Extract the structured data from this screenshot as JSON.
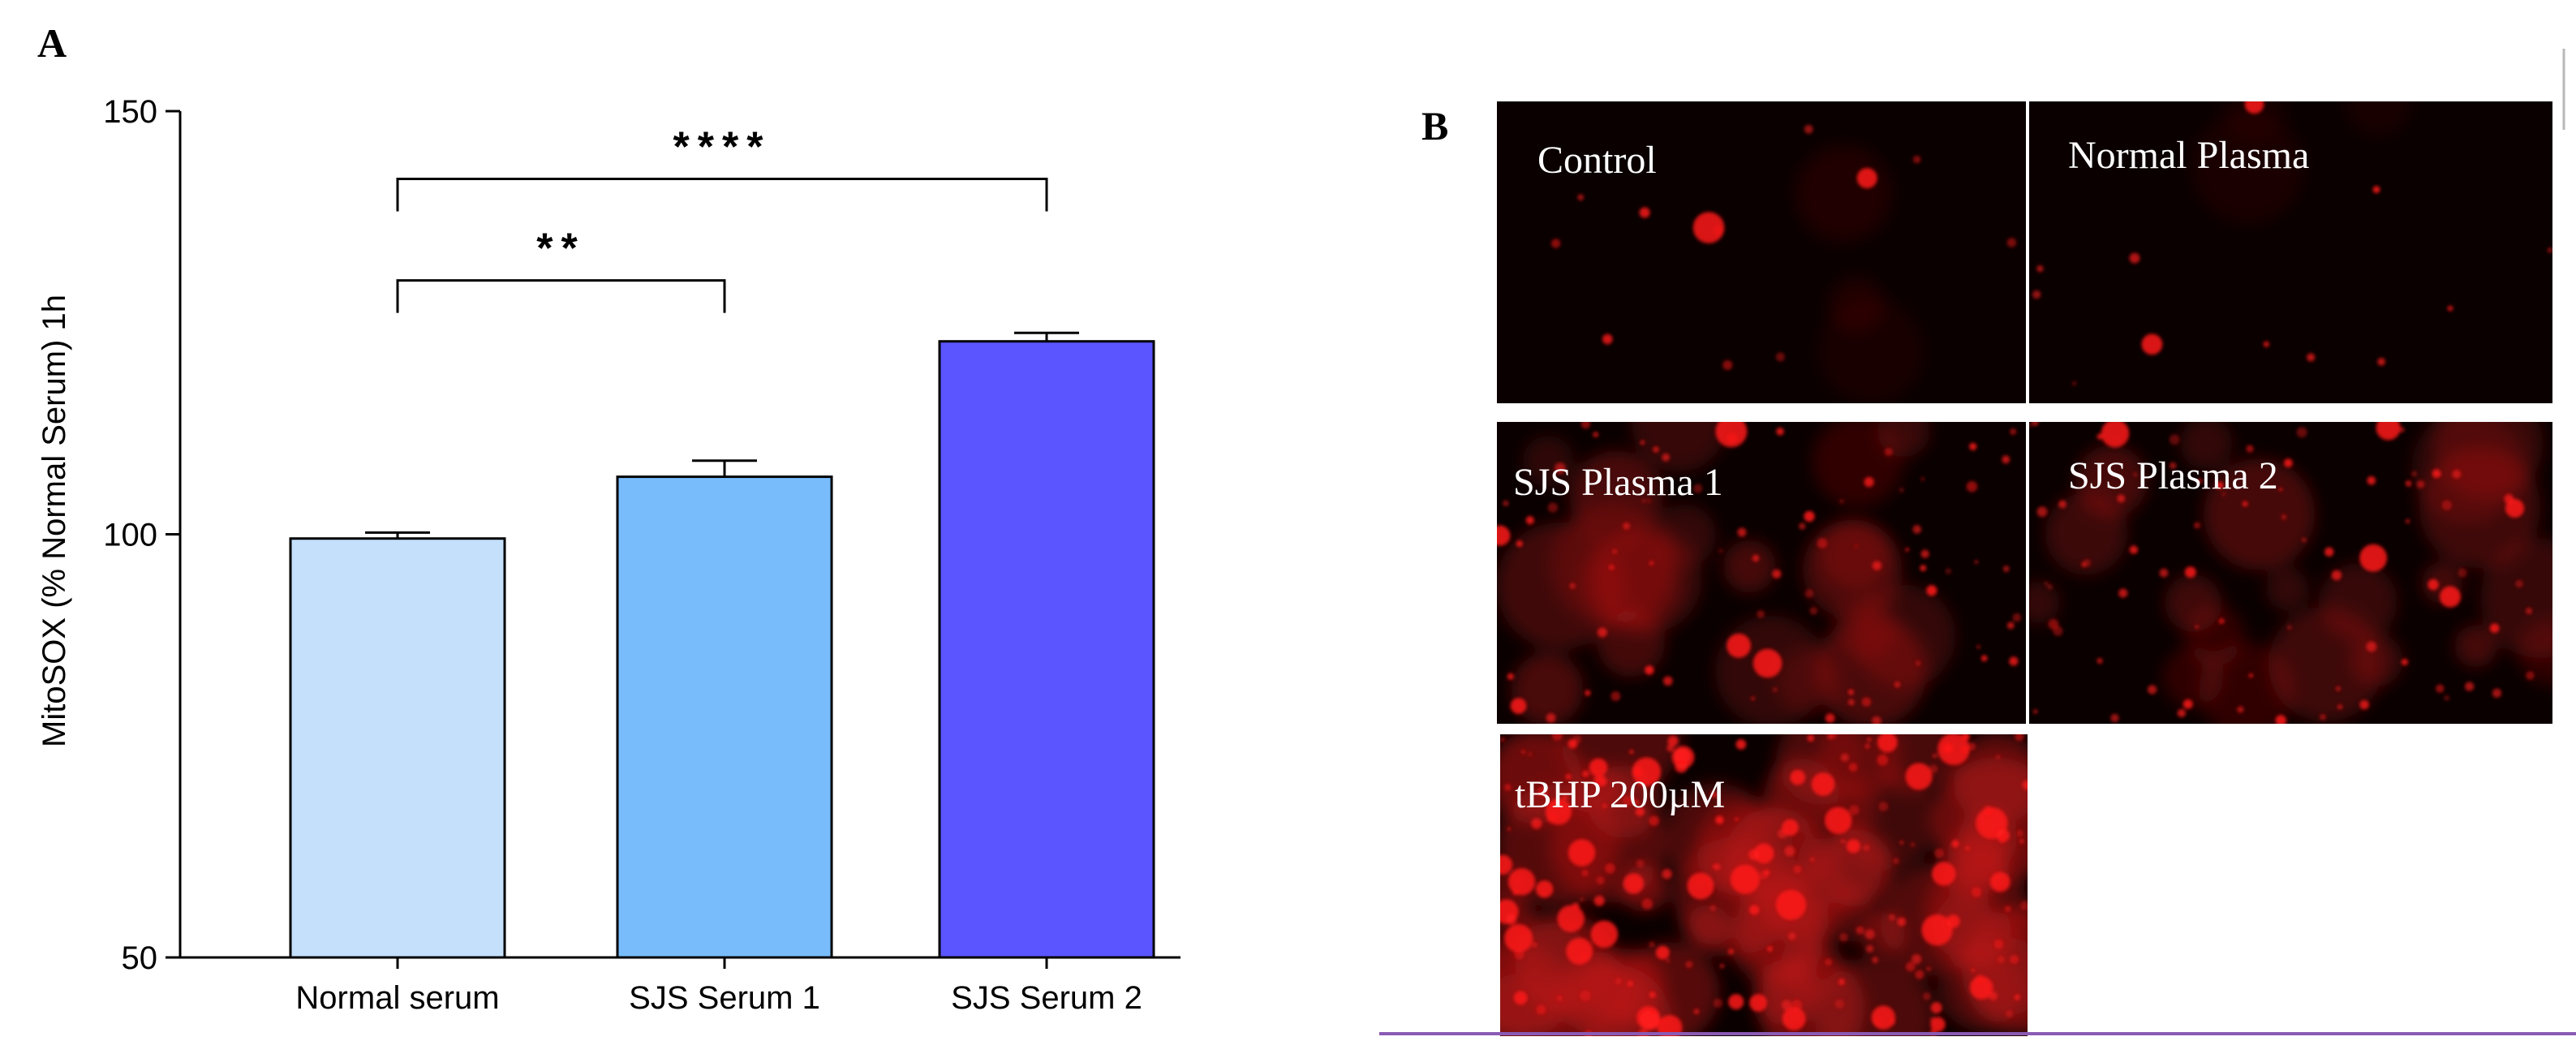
{
  "panels": {
    "a_label": "A",
    "b_label": "B"
  },
  "chart_data": {
    "type": "bar",
    "title": "",
    "xlabel": "",
    "ylabel": "MitoSOX (% Normal Serum) 1h",
    "categories": [
      "Normal serum",
      "SJS Serum 1",
      "SJS Serum 2"
    ],
    "values": [
      99.5,
      106.8,
      122.8
    ],
    "errors": [
      0.7,
      1.9,
      1.0
    ],
    "colors": [
      "#c5e0fb",
      "#78bcfc",
      "#5a55ff"
    ],
    "ylim": [
      50,
      150
    ],
    "yticks": [
      50,
      100,
      150
    ],
    "significance": [
      {
        "from": 0,
        "to": 1,
        "label": "**",
        "y": 130
      },
      {
        "from": 0,
        "to": 2,
        "label": "****",
        "y": 142
      }
    ]
  },
  "micrographs": [
    {
      "label": "Control",
      "intensity": "low"
    },
    {
      "label": "Normal Plasma",
      "intensity": "low"
    },
    {
      "label": "SJS Plasma 1",
      "intensity": "medium"
    },
    {
      "label": "SJS Plasma 2",
      "intensity": "medium"
    },
    {
      "label": "tBHP 200µM",
      "intensity": "high"
    }
  ],
  "colors": {
    "micrograph_background": "#0a0000",
    "fluorescence": "#ff1a1a",
    "divider_line": "#8a5ab4"
  }
}
